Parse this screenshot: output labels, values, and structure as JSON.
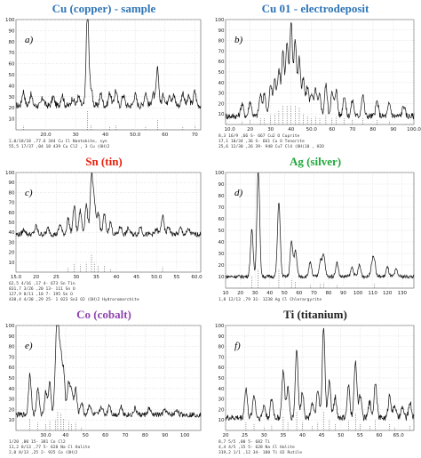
{
  "colors": {
    "line": "#111111",
    "grid": "#d0d0d0"
  },
  "panels": [
    {
      "title": "Cu (copper) - sample",
      "title_color": "#2e75b6",
      "label": "a)"
    },
    {
      "title": "Cu 01 - electrodeposit",
      "title_color": "#2e75b6",
      "label": "b)"
    },
    {
      "title": "Sn (tin)",
      "title_color": "#e8200c",
      "label": "c)"
    },
    {
      "title": "Ag (silver)",
      "title_color": "#1fa83c",
      "label": "d)"
    },
    {
      "title": "Co (cobalt)",
      "title_color": "#8e44ad",
      "label": "e)"
    },
    {
      "title": "Ti (titanium)",
      "title_color": "#222222",
      "label": "f)"
    }
  ],
  "chart_data": [
    {
      "type": "line",
      "title": "Cu (copper) - sample",
      "xlim": [
        10,
        72
      ],
      "ylim": [
        0,
        100
      ],
      "xticks": [
        "20.0",
        "30",
        "40",
        "50.0",
        "60",
        "70"
      ],
      "xtick_values": [
        20,
        30,
        40,
        50,
        60,
        70
      ],
      "yticks": [
        "10",
        "20",
        "30",
        "40",
        "50",
        "60",
        "70",
        "80",
        "90",
        "100"
      ],
      "grid": true,
      "baseline": 22,
      "noise": 6,
      "peaks": [
        [
          12.5,
          13
        ],
        [
          15,
          10
        ],
        [
          19,
          7
        ],
        [
          22.5,
          8
        ],
        [
          25.5,
          10
        ],
        [
          29,
          7
        ],
        [
          31,
          8
        ],
        [
          34,
          85
        ],
        [
          35.2,
          15
        ],
        [
          38.5,
          11
        ],
        [
          41.5,
          12
        ],
        [
          43.5,
          14
        ],
        [
          46,
          10
        ],
        [
          50,
          10
        ],
        [
          53.5,
          12
        ],
        [
          56,
          10
        ],
        [
          57.5,
          33
        ],
        [
          59.5,
          10
        ],
        [
          61.5,
          11
        ],
        [
          63,
          9
        ],
        [
          66,
          12
        ],
        [
          68,
          8
        ],
        [
          70,
          13
        ]
      ],
      "legend": [
        "2,0/18/18  ,77.6  344 Cu Cl Nantokite, syn",
        "55,5 17/37 ,04 18   439 Cu Cl2 , 3 Cu (OH)2"
      ]
    },
    {
      "type": "line",
      "title": "Cu 01 - electrodeposit",
      "xlim": [
        8,
        100
      ],
      "ylim": [
        0,
        100
      ],
      "xticks": [
        "10.0",
        "20",
        "30",
        "40",
        "50.0",
        "60",
        "70",
        "80",
        "90",
        "100.0"
      ],
      "xtick_values": [
        10,
        20,
        30,
        40,
        50,
        60,
        70,
        80,
        90,
        100
      ],
      "yticks": [
        "10",
        "20",
        "30",
        "40",
        "50",
        "60",
        "70",
        "80",
        "90",
        "100"
      ],
      "grid": true,
      "baseline": 8,
      "noise": 6,
      "peaks": [
        [
          16,
          12
        ],
        [
          20,
          14
        ],
        [
          25,
          20
        ],
        [
          27,
          22
        ],
        [
          30,
          30
        ],
        [
          32,
          35
        ],
        [
          34,
          45
        ],
        [
          36,
          62
        ],
        [
          38,
          68
        ],
        [
          40,
          90
        ],
        [
          42,
          72
        ],
        [
          44,
          55
        ],
        [
          46,
          35
        ],
        [
          48,
          28
        ],
        [
          50,
          22
        ],
        [
          52,
          25
        ],
        [
          54,
          20
        ],
        [
          57,
          30
        ],
        [
          60,
          22
        ],
        [
          62,
          25
        ],
        [
          66,
          20
        ],
        [
          70,
          15
        ],
        [
          75,
          20
        ],
        [
          82,
          14
        ],
        [
          88,
          12
        ],
        [
          95,
          10
        ]
      ],
      "legend": [
        "8,3   16/9    ,66  S- 667 Cu2 O Cuprite",
        "17,1 10/34  ,36  S- 661 Cu O Tenorite",
        "25,6 12/30  ,26  39- 948 Cu7 Cl4 (OH)10 , H2O"
      ]
    },
    {
      "type": "line",
      "title": "Sn (tin)",
      "xlim": [
        15,
        61
      ],
      "ylim": [
        0,
        100
      ],
      "xticks": [
        "15.0",
        "20",
        "25",
        "30",
        "35",
        "40",
        "45",
        "50.0",
        "55",
        "60.0"
      ],
      "xtick_values": [
        15,
        20,
        25,
        30,
        35,
        40,
        45,
        50,
        55,
        60
      ],
      "yticks": [
        "10",
        "20",
        "30",
        "40",
        "50",
        "60",
        "70",
        "80",
        "90",
        "100"
      ],
      "grid": true,
      "baseline": 38,
      "noise": 5,
      "peaks": [
        [
          17,
          5
        ],
        [
          20,
          8
        ],
        [
          23,
          6
        ],
        [
          26,
          10
        ],
        [
          28,
          16
        ],
        [
          29.5,
          28
        ],
        [
          31,
          24
        ],
        [
          32.5,
          30
        ],
        [
          33.8,
          58
        ],
        [
          34.5,
          30
        ],
        [
          35.5,
          22
        ],
        [
          37,
          20
        ],
        [
          38.5,
          12
        ],
        [
          41,
          8
        ],
        [
          43,
          6
        ],
        [
          46,
          8
        ],
        [
          50,
          5
        ],
        [
          51.5,
          18
        ],
        [
          53,
          8
        ],
        [
          56,
          6
        ],
        [
          58,
          5
        ]
      ],
      "legend": [
        "62,5    4/16       ,17   4- 673 Sn Tin",
        "831,7  3/26   ,20  13- 111 Sn O",
        "127,9   8/11    ,18    7- 195 Sn O",
        "438,4   4/30   ,29  25- 1 023 Sn3 O2 (OH)2 Hydroromarchite"
      ]
    },
    {
      "type": "line",
      "title": "Ag (silver)",
      "xlim": [
        10,
        138
      ],
      "ylim": [
        0,
        100
      ],
      "xticks": [
        "10",
        "20",
        "30",
        "40",
        "50",
        "60",
        "70",
        "80",
        "90",
        "100",
        "110",
        "120",
        "130"
      ],
      "xtick_values": [
        10,
        20,
        30,
        40,
        50,
        60,
        70,
        80,
        90,
        100,
        110,
        120,
        130
      ],
      "yticks": [
        "10",
        "20",
        "30",
        "40",
        "50",
        "60",
        "70",
        "80",
        "90",
        "100"
      ],
      "grid": true,
      "baseline": 10,
      "noise": 3,
      "peaks": [
        [
          27.8,
          40
        ],
        [
          32.2,
          92
        ],
        [
          46.2,
          65
        ],
        [
          54.8,
          30
        ],
        [
          57.5,
          22
        ],
        [
          67.5,
          12
        ],
        [
          74.5,
          14
        ],
        [
          76.7,
          18
        ],
        [
          85.7,
          12
        ],
        [
          96,
          8
        ],
        [
          101,
          10
        ],
        [
          109.5,
          10
        ],
        [
          111,
          14
        ],
        [
          120,
          8
        ],
        [
          126,
          6
        ]
      ],
      "legend": [
        "1,8  12/13   ,79  31- 1238 Ag Cl Chlorargyrite"
      ]
    },
    {
      "type": "line",
      "title": "Co (cobalt)",
      "xlim": [
        15,
        108
      ],
      "ylim": [
        0,
        100
      ],
      "xticks": [
        "30.0",
        "40",
        "50",
        "60",
        "70",
        "80",
        "90",
        "100"
      ],
      "xtick_values": [
        30,
        40,
        50,
        60,
        70,
        80,
        90,
        100
      ],
      "yticks": [
        "10",
        "20",
        "30",
        "40",
        "50",
        "60",
        "70",
        "80",
        "90",
        "100"
      ],
      "grid": true,
      "baseline": 15,
      "noise": 5,
      "peaks": [
        [
          22,
          40
        ],
        [
          26,
          25
        ],
        [
          30,
          22
        ],
        [
          32,
          30
        ],
        [
          35,
          35
        ],
        [
          36,
          92
        ],
        [
          37.5,
          55
        ],
        [
          39,
          40
        ],
        [
          41.5,
          30
        ],
        [
          43,
          22
        ],
        [
          45,
          25
        ],
        [
          48,
          12
        ],
        [
          52,
          10
        ],
        [
          58,
          8
        ],
        [
          62,
          10
        ],
        [
          68,
          8
        ],
        [
          75,
          6
        ],
        [
          82,
          6
        ],
        [
          90,
          5
        ],
        [
          96,
          5
        ]
      ],
      "legend": [
        "1/20    ,00  15- 381 Co Cl2",
        "11,2  8/13   ,77  5- 628 Na Cl Halite",
        "2,0  8/13   ,25  2- 925 Co (OH)2"
      ]
    },
    {
      "type": "line",
      "title": "Ti (titanium)",
      "xlim": [
        20,
        69
      ],
      "ylim": [
        0,
        100
      ],
      "xticks": [
        "20",
        "25",
        "30",
        "35",
        "40",
        "45",
        "50",
        "55",
        "60",
        "65.0"
      ],
      "xtick_values": [
        20,
        25,
        30,
        35,
        40,
        45,
        50,
        55,
        60,
        65
      ],
      "yticks": [
        "10",
        "20",
        "30",
        "40",
        "50",
        "60",
        "70",
        "80",
        "90",
        "100"
      ],
      "grid": true,
      "baseline": 12,
      "noise": 6,
      "peaks": [
        [
          25.3,
          28
        ],
        [
          27.4,
          22
        ],
        [
          30,
          12
        ],
        [
          32,
          18
        ],
        [
          35,
          45
        ],
        [
          36.2,
          28
        ],
        [
          38.5,
          65
        ],
        [
          40,
          25
        ],
        [
          42.5,
          15
        ],
        [
          44,
          25
        ],
        [
          45.5,
          85
        ],
        [
          47,
          35
        ],
        [
          48.5,
          20
        ],
        [
          52,
          30
        ],
        [
          53.8,
          55
        ],
        [
          55,
          22
        ],
        [
          57.5,
          15
        ],
        [
          59,
          35
        ],
        [
          62.7,
          22
        ],
        [
          64,
          12
        ],
        [
          66,
          10
        ],
        [
          68,
          15
        ]
      ],
      "legend": [
        "8,7   5/5     ,00  5- 682 Ti",
        "4,4   4/5     ,15  5- 628 Na Cl Halite",
        "319,2  1/1    ,12  34- 180 Ti O2 Rutile"
      ]
    }
  ]
}
